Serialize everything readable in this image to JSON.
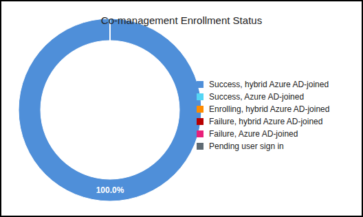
{
  "chart_data": {
    "type": "donut",
    "title": "Co-management Enrollment Status",
    "categories": [
      "Success, hybrid Azure AD-joined",
      "Success, Azure AD-joined",
      "Enrolling, hybrid Azure AD-joined",
      "Failure, hybrid Azure AD-joined",
      "Failure, Azure AD-joined",
      "Pending user sign in"
    ],
    "values": [
      100,
      0,
      0,
      0,
      0,
      0
    ],
    "value_labels": [
      "100.0%",
      null,
      null,
      null,
      null,
      null
    ],
    "colors": [
      "#4f8fd9",
      "#55d6f5",
      "#ff8c00",
      "#b80000",
      "#e8207a",
      "#5f6b73"
    ],
    "data_labels": true,
    "legend": "right"
  }
}
